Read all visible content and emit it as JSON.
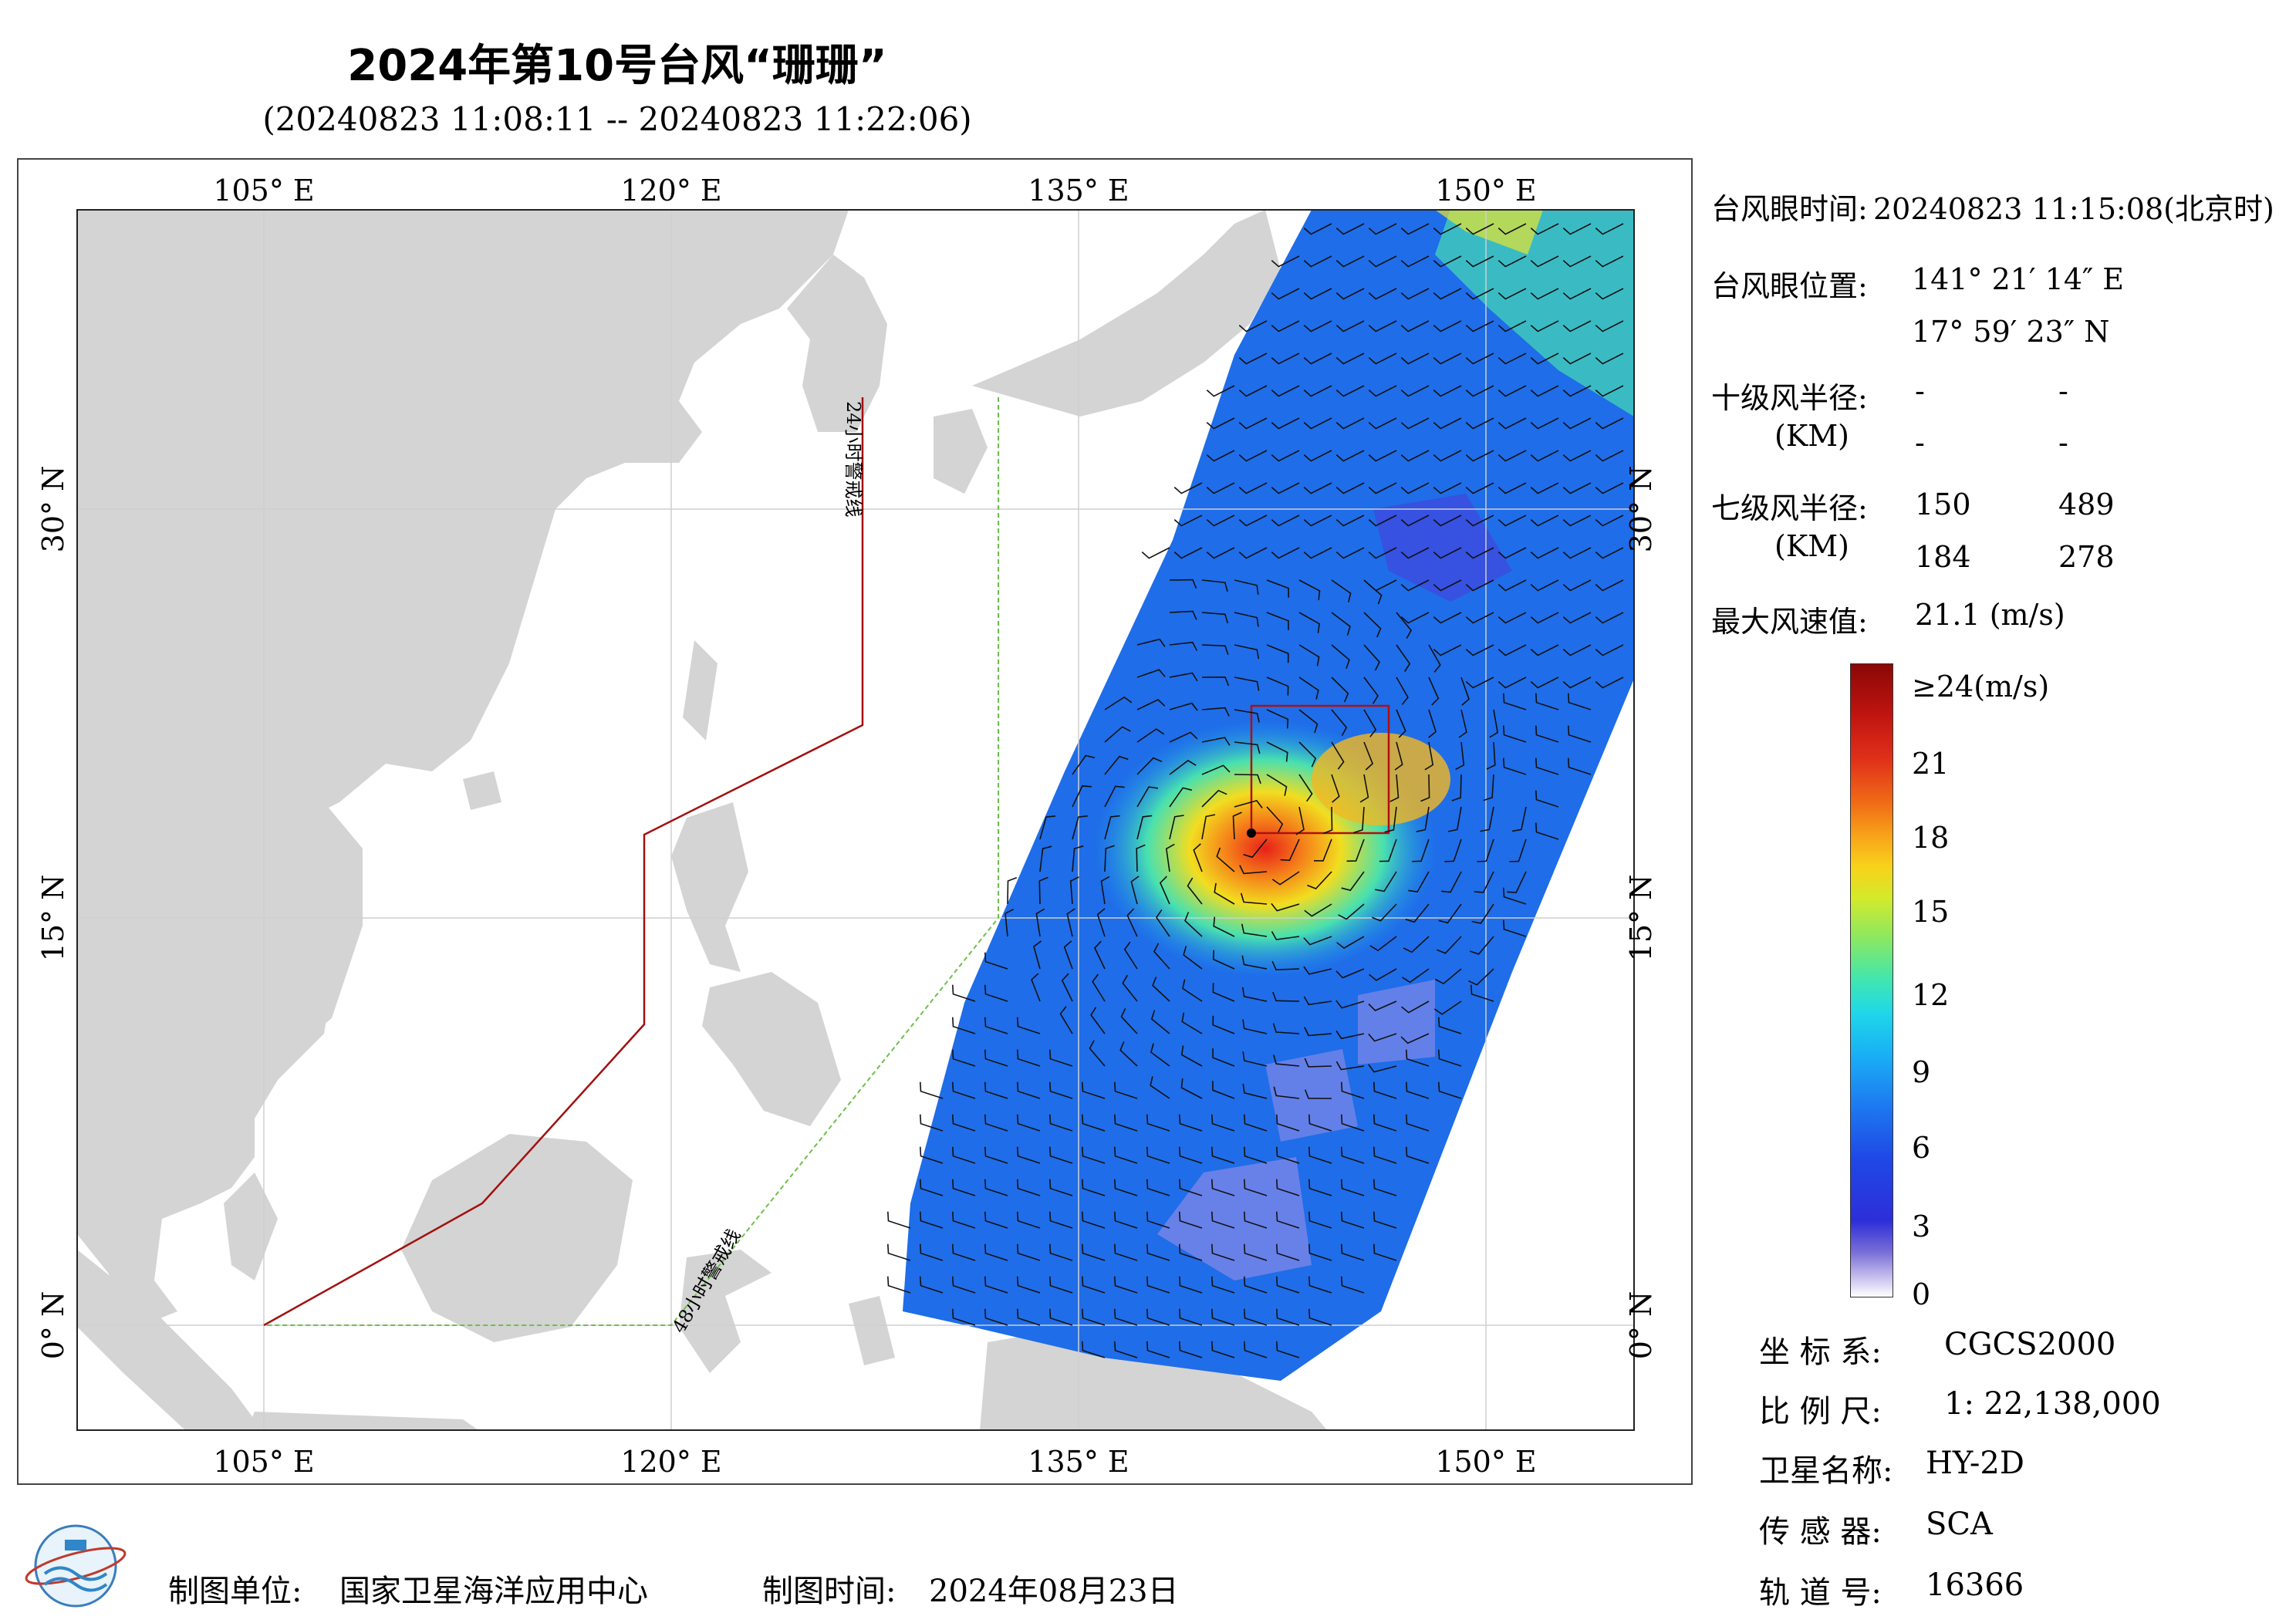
{
  "title": "2024年第10号台风“珊珊”",
  "subtitle": "(20240823 11:08:11 -- 20240823 11:22:06)",
  "map": {
    "top_lon_labels": [
      "105° E",
      "120° E",
      "135° E",
      "150° E"
    ],
    "bottom_lon_labels": [
      "105° E",
      "120° E",
      "135° E",
      "150° E"
    ],
    "left_lat_labels": [
      "30° N",
      "15° N",
      "0° N"
    ],
    "right_lat_labels": [
      "30° N",
      "15° N",
      "0° N"
    ],
    "warning_24h_label": "24小时警戒线",
    "warning_48h_label": "48小时警戒线",
    "colors": {
      "land": "#d4d4d4",
      "ocean": "#ffffff",
      "warning_24h": "#a31010",
      "warning_48h": "#6cc04a"
    }
  },
  "info": {
    "eye_time_label": "台风眼时间:",
    "eye_time_value": "20240823 11:15:08(北京时)",
    "eye_pos_label": "台风眼位置:",
    "eye_lon": "141° 21′ 14″ E",
    "eye_lat": "17° 59′ 23″ N",
    "r10_label": "十级风半径:",
    "r10_unit": "(KM)",
    "r10_values": [
      "-",
      "-",
      "-",
      "-"
    ],
    "r7_label": "七级风半径:",
    "r7_unit": "(KM)",
    "r7_values": [
      "150",
      "489",
      "184",
      "278"
    ],
    "max_wind_label": "最大风速值:",
    "max_wind_value": "21.1  (m/s)"
  },
  "colorbar": {
    "ticks": [
      "≥24(m/s)",
      "21",
      "18",
      "15",
      "12",
      "9",
      "6",
      "3",
      "0"
    ]
  },
  "meta": {
    "coord_label": "坐 标 系:",
    "coord_value": "CGCS2000",
    "scale_label": "比 例 尺:",
    "scale_value": "1: 22,138,000",
    "sat_label": "卫星名称:",
    "sat_value": "HY-2D",
    "sensor_label": "传 感 器:",
    "sensor_value": "SCA",
    "orbit_label": "轨 道 号:",
    "orbit_value": "16366"
  },
  "footer": {
    "maker_label": "制图单位:",
    "maker_value": "国家卫星海洋应用中心",
    "date_label": "制图时间:",
    "date_value": "2024年08月23日"
  }
}
